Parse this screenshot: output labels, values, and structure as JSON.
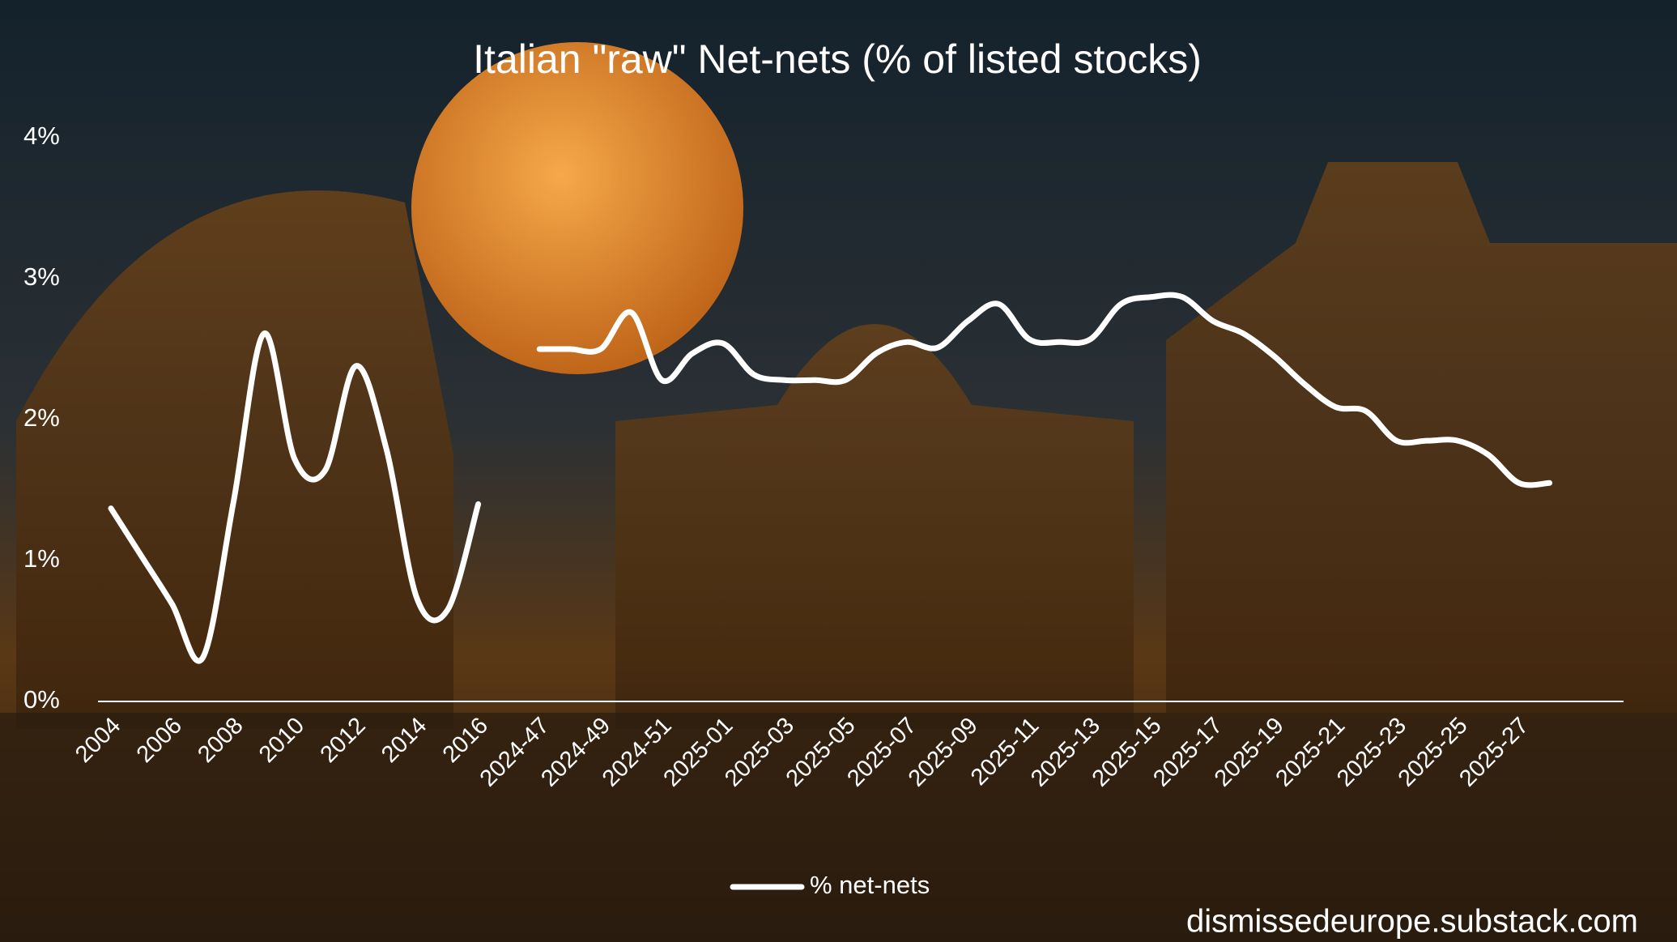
{
  "chart_data": {
    "type": "line",
    "title": "Italian \"raw\" Net-nets (% of listed stocks)",
    "categories": [
      "2004",
      null,
      "2006",
      null,
      "2008",
      null,
      "2010",
      null,
      "2012",
      null,
      "2014",
      null,
      "2016",
      null,
      "2024-47",
      null,
      "2024-49",
      null,
      "2024-51",
      null,
      "2025-01",
      null,
      "2025-03",
      null,
      "2025-05",
      null,
      "2025-07",
      null,
      "2025-09",
      null,
      "2025-11",
      null,
      "2025-13",
      null,
      "2025-15",
      null,
      "2025-17",
      null,
      "2025-19",
      null,
      "2025-21",
      null,
      "2025-23",
      null,
      "2025-25",
      null,
      "2025-27",
      null
    ],
    "series": [
      {
        "name": "% net-nets",
        "color": "#ffffff",
        "values": [
          1.37,
          1.03,
          0.69,
          0.31,
          1.41,
          2.61,
          1.72,
          1.64,
          2.38,
          1.79,
          0.73,
          0.65,
          1.4,
          null,
          2.5,
          2.5,
          2.5,
          2.76,
          2.28,
          2.47,
          2.54,
          2.32,
          2.28,
          2.28,
          2.28,
          2.47,
          2.55,
          2.51,
          2.7,
          2.82,
          2.57,
          2.55,
          2.57,
          2.82,
          2.87,
          2.87,
          2.7,
          2.61,
          2.45,
          2.25,
          2.09,
          2.06,
          1.85,
          1.85,
          1.85,
          1.75,
          1.55,
          1.55
        ]
      }
    ],
    "ylim": [
      0,
      4
    ],
    "yticks": [
      {
        "value": 0,
        "label": "0%"
      },
      {
        "value": 1,
        "label": "1%"
      },
      {
        "value": 2,
        "label": "2%"
      },
      {
        "value": 3,
        "label": "3%"
      },
      {
        "value": 4,
        "label": "4%"
      }
    ],
    "smooth": true,
    "legend": "bottom",
    "footer": "dismissedeurope.substack.com"
  }
}
